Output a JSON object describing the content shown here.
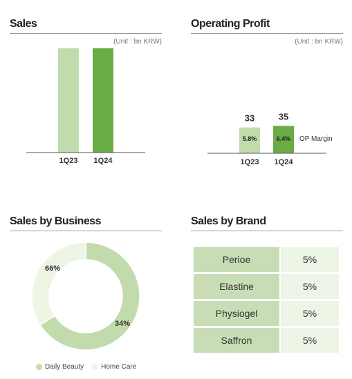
{
  "sales": {
    "title": "Sales",
    "unit": "(Unit : bn KRW)"
  },
  "operating_profit": {
    "title": "Operating Profit",
    "unit": "(Unit : bn KRW)",
    "margin_label": "OP Margin"
  },
  "sales_by_business": {
    "title": "Sales by Business"
  },
  "sales_by_brand": {
    "title": "Sales by Brand",
    "rows": [
      {
        "brand": "Perioe",
        "share": "5%"
      },
      {
        "brand": "Elastine",
        "share": "5%"
      },
      {
        "brand": "Physiogel",
        "share": "5%"
      },
      {
        "brand": "Saffron",
        "share": "5%"
      }
    ]
  },
  "colors": {
    "light_green": "#c2dbac",
    "dark_green": "#6aab46",
    "home_care": "#edf5e4"
  },
  "chart_data": [
    {
      "type": "bar",
      "title": "Sales",
      "categories": [
        "1Q23",
        "1Q24"
      ],
      "values": [
        563,
        553
      ],
      "ylim": [
        0,
        600
      ],
      "grid": false
    },
    {
      "type": "bar",
      "title": "Operating Profit",
      "categories": [
        "1Q23",
        "1Q24"
      ],
      "values": [
        33,
        35
      ],
      "op_margin": [
        "5.8%",
        "6.4%"
      ],
      "ylim": [
        0,
        60
      ],
      "grid": false
    },
    {
      "type": "pie",
      "title": "Sales by Business",
      "labels": [
        "Daily Beauty",
        "Home Care"
      ],
      "values": [
        66,
        34
      ],
      "value_labels": [
        "66%",
        "34%"
      ],
      "legend": "bottom"
    }
  ]
}
